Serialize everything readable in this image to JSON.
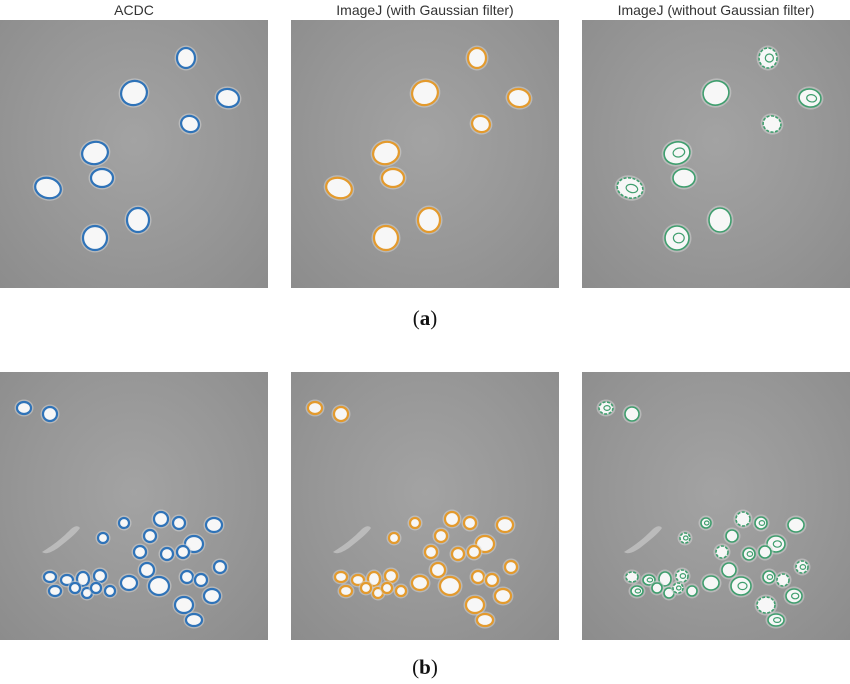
{
  "figure": {
    "columns": [
      {
        "title": "ACDC",
        "color": "#2f73b8"
      },
      {
        "title": "ImageJ (with Gaussian filter)",
        "color": "#e39a2d"
      },
      {
        "title": "ImageJ (without Gaussian filter)",
        "color": "#3f9e6e"
      }
    ],
    "rows": [
      {
        "label_open": "(",
        "label_letter": "a",
        "label_close": ")"
      },
      {
        "label_open": "(",
        "label_letter": "b",
        "label_close": ")"
      }
    ]
  }
}
